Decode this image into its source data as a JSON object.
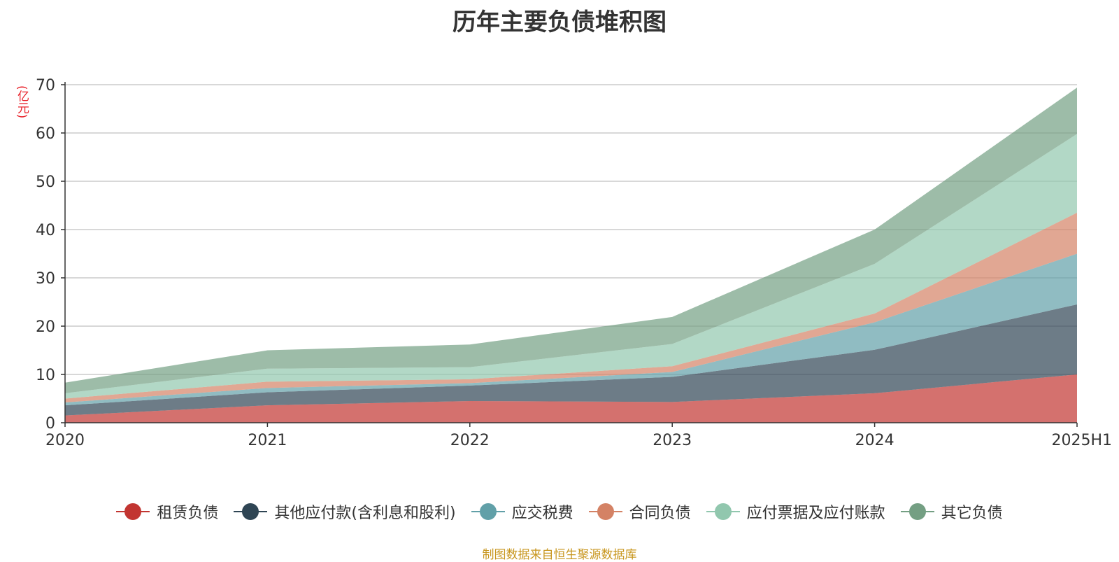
{
  "title": "历年主要负债堆积图",
  "unit_label": "(亿元)",
  "source": "制图数据来自恒生聚源数据库",
  "chart_data": {
    "type": "area",
    "stacked": true,
    "categories": [
      "2020",
      "2021",
      "2022",
      "2023",
      "2024",
      "2025H1"
    ],
    "ylim": [
      0,
      70
    ],
    "yticks": [
      "0",
      "10",
      "20",
      "30",
      "40",
      "50",
      "60",
      "70"
    ],
    "grid": true,
    "legend_position": "bottom",
    "series": [
      {
        "name": "租赁负债",
        "color": "#c23531",
        "values": [
          1.5,
          3.6,
          4.5,
          4.3,
          6.1,
          10.0
        ]
      },
      {
        "name": "其他应付款(含利息和股利)",
        "color": "#2f4554",
        "values": [
          2.1,
          2.7,
          3.2,
          5.2,
          9.0,
          14.5
        ]
      },
      {
        "name": "应交税费",
        "color": "#61a0a8",
        "values": [
          0.6,
          0.9,
          0.5,
          1.0,
          5.7,
          10.5
        ]
      },
      {
        "name": "合同负债",
        "color": "#d48265",
        "values": [
          0.8,
          1.3,
          0.8,
          1.2,
          1.8,
          8.5
        ]
      },
      {
        "name": "应付票据及应付账款",
        "color": "#91c7ae",
        "values": [
          1.1,
          2.7,
          2.5,
          4.6,
          10.3,
          16.3
        ]
      },
      {
        "name": "其它负债",
        "color": "#749f83",
        "values": [
          2.2,
          3.8,
          4.7,
          5.6,
          7.1,
          9.6
        ]
      }
    ]
  }
}
